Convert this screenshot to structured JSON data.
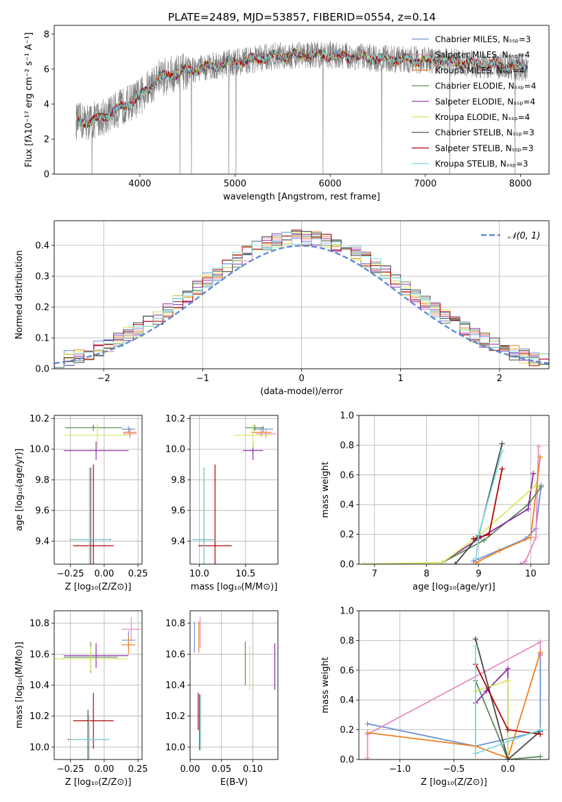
{
  "figure_title": "PLATE=2489, MJD=53857, FIBERID=0554, z=0.14",
  "colors": {
    "Chabrier MILES": "#6a8fd8",
    "Salpeter MILES": "#e78ac3",
    "Kroupa MILES": "#f07f1e",
    "Chabrier ELODIE": "#5a8a5a",
    "Salpeter ELODIE": "#8a2aa8",
    "Kroupa ELODIE": "#d6e85a",
    "Chabrier STELIB": "#444444",
    "Salpeter STELIB": "#b00000",
    "Kroupa STELIB": "#80dada",
    "observed": "#7a7a7a",
    "normal": "#5b8ad6"
  },
  "chart_data": [
    {
      "id": "spectrum",
      "type": "line",
      "xlabel": "wavelength [Angstrom, rest frame]",
      "ylabel": "Flux [fλ10⁻¹⁷ erg cm⁻² s⁻¹ A⁻¹]",
      "xlim": [
        3100,
        8300
      ],
      "ylim": [
        0,
        8.5
      ],
      "xticks": [
        4000,
        5000,
        6000,
        7000,
        8000
      ],
      "yticks": [
        0,
        2,
        4,
        6,
        8
      ],
      "x_range": [
        3330,
        8080
      ],
      "continuum": [
        [
          3330,
          3.0
        ],
        [
          3500,
          3.0
        ],
        [
          3700,
          3.5
        ],
        [
          3900,
          4.1
        ],
        [
          4000,
          4.4
        ],
        [
          4200,
          5.5
        ],
        [
          4500,
          5.9
        ],
        [
          5000,
          6.4
        ],
        [
          5500,
          6.8
        ],
        [
          6000,
          6.8
        ],
        [
          6500,
          6.6
        ],
        [
          7000,
          6.5
        ],
        [
          7500,
          6.3
        ],
        [
          8080,
          6.1
        ]
      ],
      "legend": [
        "Chabrier MILES, Nₛₛₚ=3",
        "Salpeter MILES, Nₛₛₚ=4",
        "Kroupa MILES, Nₛₛₚ=4",
        "Chabrier ELODIE, Nₛₛₚ=4",
        "Salpeter ELODIE, Nₛₛₚ=4",
        "Kroupa ELODIE, Nₛₛₚ=4",
        "Chabrier STELIB, Nₛₛₚ=3",
        "Salpeter STELIB, Nₛₛₚ=3",
        "Kroupa STELIB, Nₛₛₚ=3"
      ],
      "legend_position": "upper right"
    },
    {
      "id": "residuals",
      "type": "step",
      "xlabel": "(data-model)/error",
      "ylabel": "Normed distribution",
      "xlim": [
        -2.5,
        2.5
      ],
      "ylim": [
        0,
        0.48
      ],
      "xticks": [
        -2,
        -1,
        0,
        1,
        2
      ],
      "yticks": [
        0.0,
        0.1,
        0.2,
        0.3,
        0.4
      ],
      "xtick_labels": [
        "−2",
        "−1",
        "0",
        "1",
        "2"
      ],
      "yticks_labels": [
        "0.0",
        "0.1",
        "0.2",
        "0.3",
        "0.4"
      ],
      "bin_width": 0.1,
      "bin_start": -2.5,
      "legend": "𝒩(0, 1)",
      "legend_position": "upper right",
      "grid": true
    },
    {
      "id": "age_vs_Z",
      "type": "errorbar",
      "xlabel": "Z [log₁₀(Z/Z⊙)]",
      "ylabel": "age  [log₁₀(age/yr)]",
      "xlim": [
        -0.37,
        0.28
      ],
      "ylim": [
        9.25,
        10.22
      ],
      "xticks": [
        -0.25,
        0.0,
        0.25
      ],
      "xtick_labels": [
        "−0.25",
        "0.00",
        "0.25"
      ],
      "yticks": [
        9.4,
        9.6,
        9.8,
        10.0,
        10.2
      ],
      "ytick_labels": [
        "9.4",
        "9.6",
        "9.8",
        "10.0",
        "10.2"
      ],
      "points": [
        {
          "c": "Chabrier MILES",
          "x": 0.18,
          "xe": 0.05,
          "y": 10.13,
          "ye": 0.02
        },
        {
          "c": "Salpeter MILES",
          "x": 0.19,
          "xe": 0.05,
          "y": 10.1,
          "ye": 0.03
        },
        {
          "c": "Kroupa MILES",
          "x": 0.19,
          "xe": 0.05,
          "y": 10.11,
          "ye": 0.03
        },
        {
          "c": "Chabrier ELODIE",
          "x": -0.08,
          "xe": 0.21,
          "y": 10.14,
          "ye": 0.02
        },
        {
          "c": "Salpeter ELODIE",
          "x": -0.06,
          "xe": 0.24,
          "y": 9.99,
          "ye": 0.06
        },
        {
          "c": "Kroupa ELODIE",
          "x": -0.05,
          "xe": 0.25,
          "y": 10.09,
          "ye": 0.08
        },
        {
          "c": "Chabrier STELIB",
          "x": -0.1,
          "xe": 0.15,
          "y": 9.41,
          "ye": 0.47
        },
        {
          "c": "Salpeter STELIB",
          "x": -0.08,
          "xe": 0.15,
          "y": 9.37,
          "ye": 0.53
        },
        {
          "c": "Kroupa STELIB",
          "x": -0.11,
          "xe": 0.15,
          "y": 9.41,
          "ye": 0.47
        }
      ],
      "grid": true
    },
    {
      "id": "age_vs_mass",
      "type": "errorbar",
      "xlabel": "mass [log₁₀(M/M⊙)]",
      "ylabel": "",
      "xlim": [
        9.9,
        10.85
      ],
      "ylim": [
        9.25,
        10.22
      ],
      "xticks": [
        10.0,
        10.5
      ],
      "xtick_labels": [
        "10.0",
        "10.5"
      ],
      "yticks": [
        9.4,
        9.6,
        9.8,
        10.0,
        10.2
      ],
      "ytick_labels": [
        "9.4",
        "9.6",
        "9.8",
        "10.0",
        "10.2"
      ],
      "points": [
        {
          "c": "Chabrier MILES",
          "x": 10.69,
          "xe": 0.11,
          "y": 10.13,
          "ye": 0.02
        },
        {
          "c": "Salpeter MILES",
          "x": 10.72,
          "xe": 0.11,
          "y": 10.1,
          "ye": 0.03
        },
        {
          "c": "Kroupa MILES",
          "x": 10.67,
          "xe": 0.11,
          "y": 10.11,
          "ye": 0.03
        },
        {
          "c": "Chabrier ELODIE",
          "x": 10.6,
          "xe": 0.1,
          "y": 10.14,
          "ye": 0.02
        },
        {
          "c": "Salpeter ELODIE",
          "x": 10.58,
          "xe": 0.11,
          "y": 9.99,
          "ye": 0.06
        },
        {
          "c": "Kroupa ELODIE",
          "x": 10.58,
          "xe": 0.2,
          "y": 10.09,
          "ye": 0.08
        },
        {
          "c": "Chabrier STELIB",
          "x": 10.05,
          "xe": 0.12,
          "y": 9.41,
          "ye": 0.47
        },
        {
          "c": "Salpeter STELIB",
          "x": 10.17,
          "xe": 0.18,
          "y": 9.37,
          "ye": 0.53
        },
        {
          "c": "Kroupa STELIB",
          "x": 10.05,
          "xe": 0.12,
          "y": 9.41,
          "ye": 0.47
        }
      ],
      "grid": true
    },
    {
      "id": "weight_vs_age",
      "type": "line",
      "xlabel": "age  [log₁₀(age/yr)]",
      "ylabel": "mass weight",
      "xlim": [
        6.7,
        10.35
      ],
      "ylim": [
        0,
        1.0
      ],
      "xticks": [
        7,
        8,
        9,
        10
      ],
      "xtick_labels": [
        "7",
        "8",
        "9",
        "10"
      ],
      "yticks": [
        0.0,
        0.2,
        0.4,
        0.6,
        0.8,
        1.0
      ],
      "ytick_labels": [
        "0.0",
        "0.2",
        "0.4",
        "0.6",
        "0.8",
        "1.0"
      ],
      "series": [
        {
          "c": "Chabrier MILES",
          "x": [
            8.9,
            9.9,
            10.1,
            10.2
          ],
          "y": [
            0.02,
            0.17,
            0.24,
            0.53
          ]
        },
        {
          "c": "Salpeter MILES",
          "x": [
            9.8,
            9.9,
            10.1,
            10.15
          ],
          "y": [
            0.0,
            0.02,
            0.18,
            0.79
          ]
        },
        {
          "c": "Kroupa MILES",
          "x": [
            8.95,
            9.4,
            10.0,
            10.18
          ],
          "y": [
            0.01,
            0.09,
            0.18,
            0.72
          ]
        },
        {
          "c": "Chabrier ELODIE",
          "x": [
            8.3,
            9.1,
            9.95,
            10.2
          ],
          "y": [
            0.01,
            0.16,
            0.4,
            0.52
          ]
        },
        {
          "c": "Salpeter ELODIE",
          "x": [
            8.3,
            9.0,
            9.95,
            10.05
          ],
          "y": [
            0.01,
            0.17,
            0.37,
            0.61
          ]
        },
        {
          "c": "Kroupa ELODIE",
          "x": [
            6.8,
            8.3,
            9.0,
            10.1
          ],
          "y": [
            0.0,
            0.01,
            0.19,
            0.53
          ]
        },
        {
          "c": "Chabrier STELIB",
          "x": [
            8.55,
            9.0,
            9.45
          ],
          "y": [
            0.0,
            0.19,
            0.81
          ]
        },
        {
          "c": "Salpeter STELIB",
          "x": [
            8.9,
            9.2,
            9.45
          ],
          "y": [
            0.17,
            0.2,
            0.64
          ]
        },
        {
          "c": "Kroupa STELIB",
          "x": [
            8.95,
            9.0,
            9.45
          ],
          "y": [
            0.04,
            0.2,
            0.76
          ]
        }
      ],
      "grid": true
    },
    {
      "id": "mass_vs_Z",
      "type": "errorbar",
      "xlabel": "Z [log₁₀(Z/Z⊙)]",
      "ylabel": "mass [log₁₀(M/M⊙)]",
      "xlim": [
        -0.37,
        0.28
      ],
      "ylim": [
        9.92,
        10.88
      ],
      "xticks": [
        -0.25,
        0.0,
        0.25
      ],
      "xtick_labels": [
        "−0.25",
        "0.00",
        "0.25"
      ],
      "yticks": [
        10.0,
        10.2,
        10.4,
        10.6,
        10.8
      ],
      "ytick_labels": [
        "10.0",
        "10.2",
        "10.4",
        "10.6",
        "10.8"
      ],
      "points": [
        {
          "c": "Chabrier MILES",
          "x": 0.18,
          "xe": 0.05,
          "y": 10.69,
          "ye": 0.06
        },
        {
          "c": "Salpeter MILES",
          "x": 0.2,
          "xe": 0.07,
          "y": 10.76,
          "ye": 0.08
        },
        {
          "c": "Kroupa MILES",
          "x": 0.18,
          "xe": 0.05,
          "y": 10.66,
          "ye": 0.06
        },
        {
          "c": "Chabrier ELODIE",
          "x": -0.1,
          "xe": 0.2,
          "y": 10.58,
          "ye": 0.1
        },
        {
          "c": "Salpeter ELODIE",
          "x": -0.06,
          "xe": 0.24,
          "y": 10.59,
          "ye": 0.08
        },
        {
          "c": "Kroupa ELODIE",
          "x": -0.1,
          "xe": 0.27,
          "y": 10.57,
          "ye": 0.08
        },
        {
          "c": "Chabrier STELIB",
          "x": -0.12,
          "xe": 0.15,
          "y": 10.05,
          "ye": 0.19
        },
        {
          "c": "Salpeter STELIB",
          "x": -0.08,
          "xe": 0.15,
          "y": 10.17,
          "ye": 0.18
        },
        {
          "c": "Kroupa STELIB",
          "x": -0.11,
          "xe": 0.15,
          "y": 10.05,
          "ye": 0.15
        }
      ],
      "grid": true
    },
    {
      "id": "mass_vs_ebv",
      "type": "errorbar",
      "xlabel": "E(B-V)",
      "ylabel": "",
      "xlim": [
        0.0,
        0.14
      ],
      "ylim": [
        9.92,
        10.88
      ],
      "xticks": [
        0.0,
        0.05,
        0.1
      ],
      "xtick_labels": [
        "0.00",
        "0.05",
        "0.10"
      ],
      "yticks": [
        10.0,
        10.2,
        10.4,
        10.6,
        10.8
      ],
      "ytick_labels": [
        "10.0",
        "10.2",
        "10.4",
        "10.6",
        "10.8"
      ],
      "points": [
        {
          "c": "Chabrier MILES",
          "x": 0.007,
          "xe": 0,
          "y": 10.71,
          "ye": 0.1
        },
        {
          "c": "Salpeter MILES",
          "x": 0.016,
          "xe": 0,
          "y": 10.74,
          "ye": 0.1
        },
        {
          "c": "Kroupa MILES",
          "x": 0.014,
          "xe": 0,
          "y": 10.71,
          "ye": 0.1
        },
        {
          "c": "Chabrier ELODIE",
          "x": 0.088,
          "xe": 0,
          "y": 10.54,
          "ye": 0.14
        },
        {
          "c": "Salpeter ELODIE",
          "x": 0.135,
          "xe": 0,
          "y": 10.52,
          "ye": 0.15
        },
        {
          "c": "Kroupa ELODIE",
          "x": 0.095,
          "xe": 0,
          "y": 10.51,
          "ye": 0.14
        },
        {
          "c": "Chabrier STELIB",
          "x": 0.015,
          "xe": 0,
          "y": 10.16,
          "ye": 0.18
        },
        {
          "c": "Salpeter STELIB",
          "x": 0.013,
          "xe": 0,
          "y": 10.23,
          "ye": 0.12
        },
        {
          "c": "Kroupa STELIB",
          "x": 0.017,
          "xe": 0,
          "y": 10.16,
          "ye": 0.18
        }
      ],
      "grid": true
    },
    {
      "id": "weight_vs_Z",
      "type": "line",
      "xlabel": "Z [log₁₀(Z/Z⊙)]",
      "ylabel": "mass weight",
      "xlim": [
        -1.38,
        0.38
      ],
      "ylim": [
        0,
        1.0
      ],
      "xticks": [
        -1.0,
        -0.5,
        0.0
      ],
      "xtick_labels": [
        "−1.0",
        "−0.5",
        "0.0"
      ],
      "yticks": [
        0.0,
        0.2,
        0.4,
        0.6,
        0.8,
        1.0
      ],
      "ytick_labels": [
        "0.0",
        "0.2",
        "0.4",
        "0.6",
        "0.8",
        "1.0"
      ],
      "series": [
        {
          "c": "Chabrier MILES",
          "x": [
            -1.3,
            -0.3,
            0.3,
            0.3
          ],
          "y": [
            0.24,
            0.09,
            0.19,
            0.71
          ]
        },
        {
          "c": "Salpeter MILES",
          "x": [
            -1.3,
            -1.3,
            0.3,
            0.3
          ],
          "y": [
            0.01,
            0.17,
            0.79,
            0.7
          ]
        },
        {
          "c": "Kroupa MILES",
          "x": [
            -1.3,
            -0.3,
            0.0,
            0.3
          ],
          "y": [
            0.18,
            0.09,
            0.01,
            0.72
          ]
        },
        {
          "c": "Chabrier ELODIE",
          "x": [
            -0.3,
            -0.3,
            0.0,
            0.3
          ],
          "y": [
            0.04,
            0.53,
            0.0,
            0.02
          ]
        },
        {
          "c": "Salpeter ELODIE",
          "x": [
            -0.3,
            -0.2,
            0.0,
            0.0
          ],
          "y": [
            0.38,
            0.46,
            0.61,
            0.0
          ]
        },
        {
          "c": "Kroupa ELODIE",
          "x": [
            -0.3,
            -0.3,
            0.0,
            0.0
          ],
          "y": [
            0.0,
            0.46,
            0.53,
            0.0
          ]
        },
        {
          "c": "Chabrier STELIB",
          "x": [
            -0.3,
            0.0,
            0.3
          ],
          "y": [
            0.81,
            0.0,
            0.19
          ]
        },
        {
          "c": "Salpeter STELIB",
          "x": [
            -0.3,
            0.0,
            0.3
          ],
          "y": [
            0.64,
            0.2,
            0.17
          ]
        },
        {
          "c": "Kroupa STELIB",
          "x": [
            -0.3,
            -0.3,
            0.3
          ],
          "y": [
            0.76,
            0.04,
            0.2
          ]
        }
      ],
      "grid": true
    }
  ]
}
